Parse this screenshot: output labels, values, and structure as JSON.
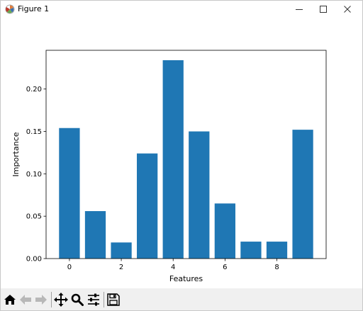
{
  "window": {
    "title": "Figure 1",
    "icons": {
      "app": "matplotlib-icon",
      "minimize": "minimize-icon",
      "maximize": "maximize-icon",
      "close": "close-icon"
    }
  },
  "toolbar": {
    "tools": [
      {
        "name": "home-icon",
        "enabled": true
      },
      {
        "name": "back-arrow-icon",
        "enabled": false
      },
      {
        "name": "forward-arrow-icon",
        "enabled": false
      },
      {
        "name": "pan-move-icon",
        "enabled": true
      },
      {
        "name": "zoom-magnifier-icon",
        "enabled": true
      },
      {
        "name": "configure-subplots-icon",
        "enabled": true
      },
      {
        "name": "save-floppy-icon",
        "enabled": true
      }
    ]
  },
  "chart_data": {
    "type": "bar",
    "x": [
      0,
      1,
      2,
      3,
      4,
      5,
      6,
      7,
      8,
      9
    ],
    "values": [
      0.154,
      0.056,
      0.019,
      0.124,
      0.234,
      0.15,
      0.065,
      0.02,
      0.02,
      0.152
    ],
    "xlabel": "Features",
    "ylabel": "Importance",
    "xticks": [
      0,
      2,
      4,
      6,
      8
    ],
    "xtick_labels": [
      "0",
      "2",
      "4",
      "6",
      "8"
    ],
    "yticks": [
      0.0,
      0.05,
      0.1,
      0.15,
      0.2
    ],
    "ytick_labels": [
      "0.00",
      "0.05",
      "0.10",
      "0.15",
      "0.20"
    ],
    "xlim": [
      -0.9,
      9.9
    ],
    "ylim": [
      0,
      0.2457
    ],
    "bar_color": "#1f77b4",
    "grid": false,
    "legend": "none"
  }
}
